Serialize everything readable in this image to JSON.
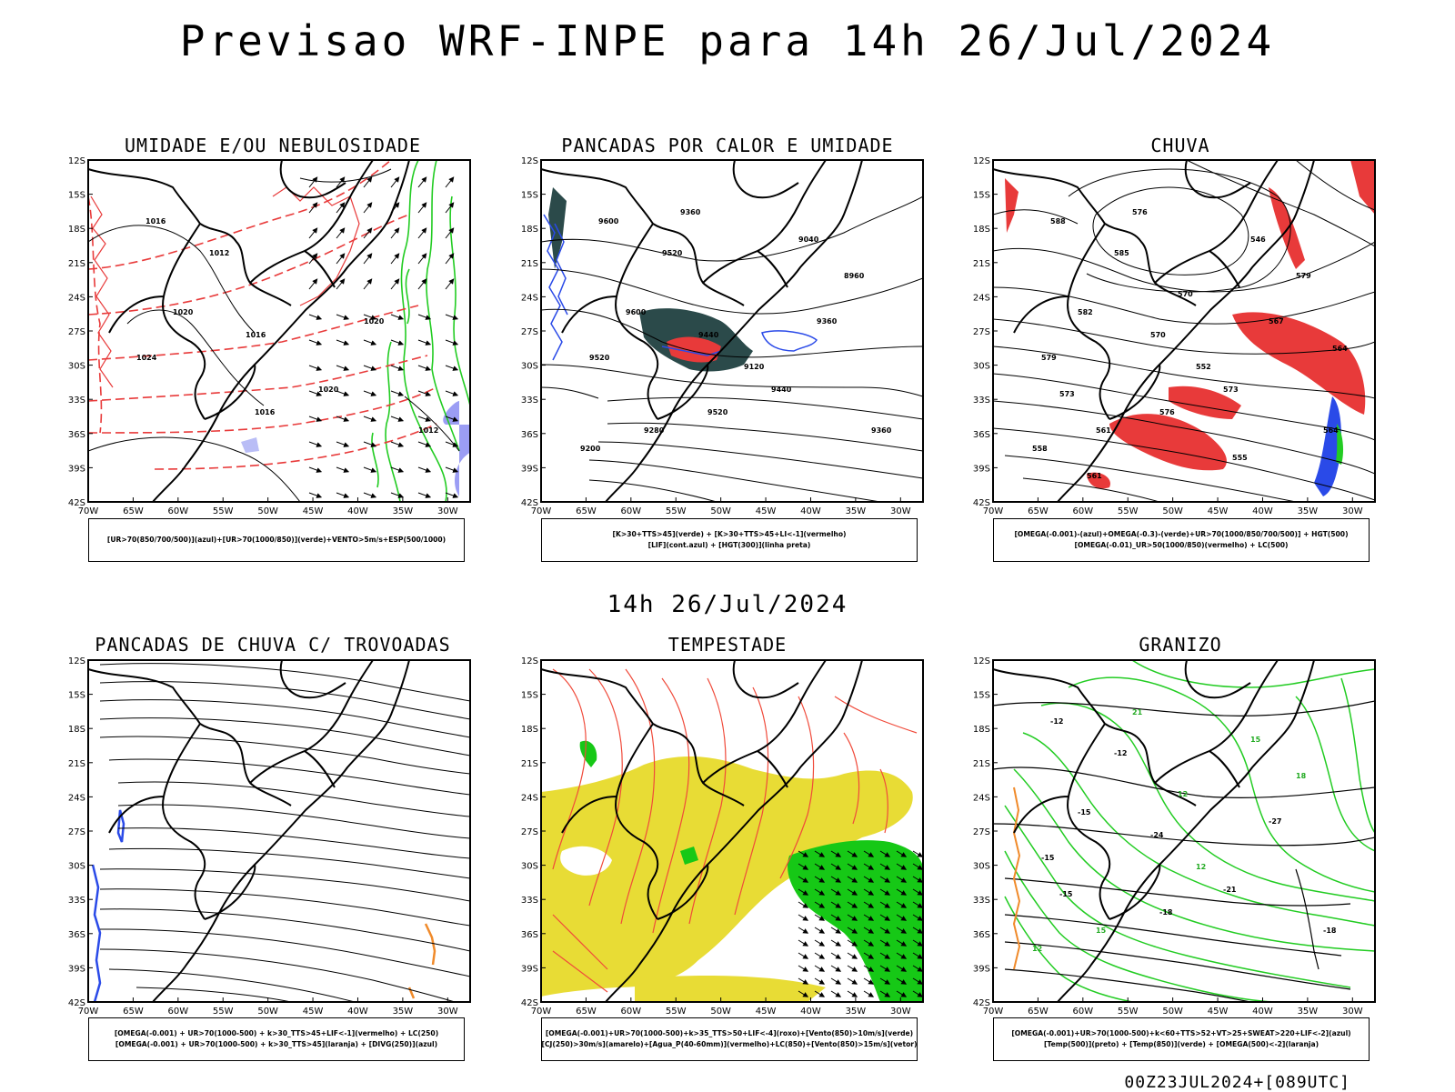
{
  "title": "Previsao WRF-INPE  para 14h 26/Jul/2024",
  "subtitle": "14h 26/Jul/2024",
  "footer": "00Z23JUL2024+[089UTC]",
  "lat_labels": [
    "12S",
    "15S",
    "18S",
    "21S",
    "24S",
    "27S",
    "30S",
    "33S",
    "36S",
    "39S",
    "42S"
  ],
  "lon_labels": [
    "70W",
    "65W",
    "60W",
    "55W",
    "50W",
    "45W",
    "40W",
    "35W",
    "30W"
  ],
  "panels": [
    {
      "title": "UMIDADE E/OU NEBULOSIDADE",
      "legend": [
        "[UR>70(850/700/500)](azul)+[UR>70(1000/850)](verde)+VENTO>5m/s+ESP(500/1000)"
      ],
      "contours": [
        "1016",
        "1012",
        "1020",
        "1024",
        "1016",
        "1020",
        "1016",
        "1020",
        "1012"
      ]
    },
    {
      "title": "PANCADAS POR CALOR E UMIDADE",
      "legend": [
        "[K>30+TTS>45](verde) + [K>30+TTS>45+LI<-1](vermelho)",
        "[LIF](cont.azul) + [HGT(300)](linha preta)"
      ],
      "contours": [
        "9600",
        "9520",
        "9600",
        "9520",
        "9520",
        "9440",
        "9440",
        "9360",
        "9360",
        "9280",
        "9200",
        "9120",
        "9040",
        "8960",
        "9360"
      ]
    },
    {
      "title": "CHUVA",
      "legend": [
        "[OMEGA(-0.001)-(azul)+OMEGA(-0.3)-(verde)+UR>70(1000/850/700/500)] + HGT(500)",
        "[OMEGA(-0.01)_UR>50(1000/850)(vermelho) + LC(500)"
      ],
      "contours": [
        "588",
        "585",
        "582",
        "579",
        "576",
        "573",
        "570",
        "567",
        "564",
        "561",
        "558",
        "552",
        "546",
        "579",
        "576",
        "570",
        "573",
        "555",
        "564",
        "561"
      ]
    },
    {
      "title": "PANCADAS DE CHUVA C/ TROVOADAS",
      "legend": [
        "[OMEGA(-0.001) + UR>70(1000-500) + k>30_TTS>45+LIF<-1](vermelho) + LC(250)",
        "[OMEGA(-0.001) + UR>70(1000-500) + k>30_TTS>45](laranja) + [DIVG(250)](azul)"
      ],
      "contours": []
    },
    {
      "title": "TEMPESTADE",
      "legend": [
        "[OMEGA(-0.001)+UR>70(1000-500)+k>35_TTS>50+LIF<-4](roxo)+[Vento(850)>10m/s](verde)",
        "[CJ(250)>30m/s](amarelo)+[Agua_P(40-60mm)](vermelho)+LC(850)+[Vento(850)>15m/s](vetor)"
      ],
      "contours": []
    },
    {
      "title": "GRANIZO",
      "legend": [
        "[OMEGA(-0.001)+UR>70(1000-500)+k<60+TTS>52+VT>25+SWEAT>220+LIF<-2](azul)",
        "[Temp(500)](preto) + [Temp(850)](verde) + [OMEGA(500)<-2](laranja)"
      ],
      "contours": [
        "-12",
        "-12",
        "-15",
        "-15",
        "-18",
        "-21",
        "-24",
        "-27",
        "-18",
        "15",
        "12",
        "12",
        "15",
        "18",
        "21",
        "12",
        "-15"
      ]
    }
  ]
}
